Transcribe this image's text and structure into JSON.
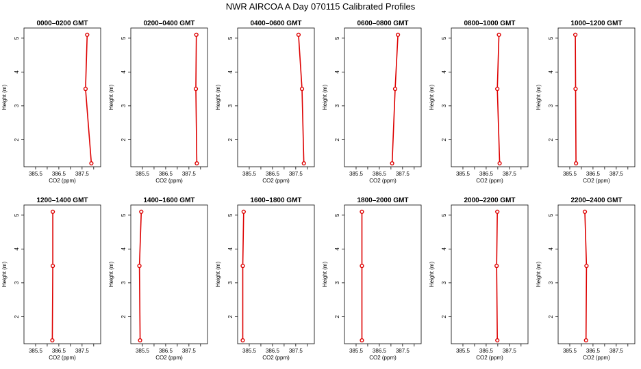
{
  "title": "NWR AIRCOA A  Day 070115  Calibrated Profiles",
  "colors": {
    "series": "#dd0000",
    "axis": "#000000"
  },
  "chart_data": {
    "type": "line",
    "xlabel": "CO2 (ppm)",
    "ylabel": "Height (m)",
    "xlim": [
      385.0,
      388.3
    ],
    "ylim": [
      1.2,
      5.3
    ],
    "xticks": [
      385.5,
      386,
      386.5,
      387,
      387.5,
      388
    ],
    "xtick_labels": [
      "385.5",
      "386.5",
      "387.5"
    ],
    "yticks": [
      2,
      3,
      4,
      5
    ],
    "heights": [
      1.3,
      3.5,
      5.1
    ],
    "grid": false,
    "panels": [
      {
        "title": "0000–0200 GMT",
        "values": [
          387.9,
          387.65,
          387.72
        ]
      },
      {
        "title": "0200–0400 GMT",
        "values": [
          387.84,
          387.8,
          387.82
        ]
      },
      {
        "title": "0400–0600 GMT",
        "values": [
          387.85,
          387.77,
          387.62
        ]
      },
      {
        "title": "0600–0800 GMT",
        "values": [
          387.05,
          387.18,
          387.3
        ]
      },
      {
        "title": "0800–1000 GMT",
        "values": [
          387.08,
          386.98,
          387.05
        ]
      },
      {
        "title": "1000–1200 GMT",
        "values": [
          385.77,
          385.75,
          385.74
        ]
      },
      {
        "title": "1200–1400 GMT",
        "values": [
          386.22,
          386.24,
          386.24
        ]
      },
      {
        "title": "1400–1600 GMT",
        "values": [
          385.4,
          385.37,
          385.45
        ]
      },
      {
        "title": "1600–1800 GMT",
        "values": [
          385.22,
          385.22,
          385.26
        ]
      },
      {
        "title": "1800–2000 GMT",
        "values": [
          385.75,
          385.75,
          385.75
        ]
      },
      {
        "title": "2000–2200 GMT",
        "values": [
          386.98,
          386.95,
          386.98
        ]
      },
      {
        "title": "2200–2400 GMT",
        "values": [
          386.2,
          386.22,
          386.15
        ]
      }
    ]
  }
}
